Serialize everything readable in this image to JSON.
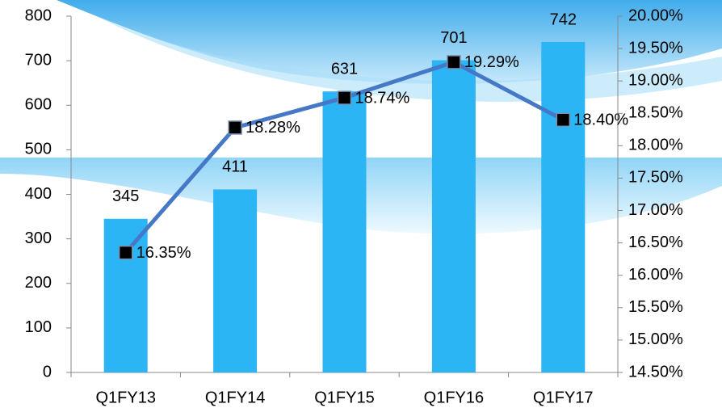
{
  "chart_data": {
    "type": "bar",
    "categories": [
      "Q1FY13",
      "Q1FY14",
      "Q1FY15",
      "Q1FY16",
      "Q1FY17"
    ],
    "series": [
      {
        "type": "bar",
        "color": "#2bb5f4",
        "values": [
          345,
          411,
          631,
          701,
          742
        ]
      },
      {
        "type": "line",
        "axis": "y2",
        "color": "#4678c8",
        "marker_color": "#000000",
        "values": [
          16.35,
          18.28,
          18.74,
          19.29,
          18.4
        ],
        "value_labels": [
          "16.35%",
          "18.28%",
          "18.74%",
          "19.29%",
          "18.40%"
        ]
      }
    ],
    "ylim": [
      0,
      800
    ],
    "yticks": [
      0,
      100,
      200,
      300,
      400,
      500,
      600,
      700,
      800
    ],
    "y2lim": [
      14.5,
      20
    ],
    "y2ticks": [
      {
        "value": 14.5,
        "label": "14.50%"
      },
      {
        "value": 15,
        "label": "15.00%"
      },
      {
        "value": 15.5,
        "label": "15.50%"
      },
      {
        "value": 16,
        "label": "16.00%"
      },
      {
        "value": 16.5,
        "label": "16.50%"
      },
      {
        "value": 17,
        "label": "17.00%"
      },
      {
        "value": 17.5,
        "label": "17.50%"
      },
      {
        "value": 18,
        "label": "18.00%"
      },
      {
        "value": 18.5,
        "label": "18.50%"
      },
      {
        "value": 19,
        "label": "19.00%"
      },
      {
        "value": 19.5,
        "label": "19.50%"
      },
      {
        "value": 20,
        "label": "20.00%"
      }
    ]
  }
}
